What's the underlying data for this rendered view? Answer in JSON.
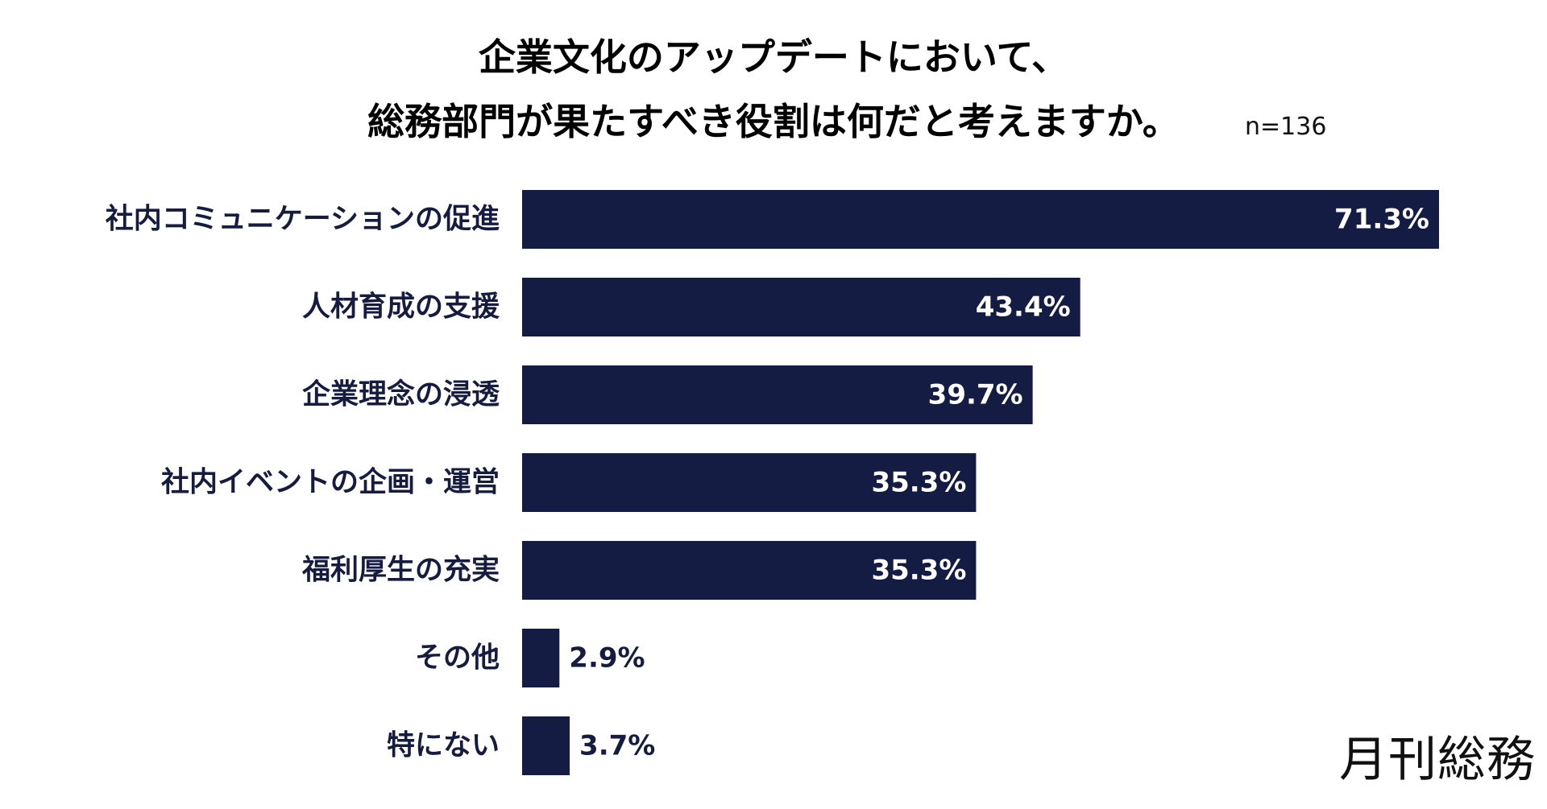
{
  "title": {
    "line1": "企業文化のアップデートにおいて、",
    "line2": "総務部門が果たすべき役割は何だと考えますか。",
    "sample_size": "n=136"
  },
  "brand": "月刊総務",
  "colors": {
    "bar": "#141c43",
    "label": "#151c3f",
    "value_inside": "#ffffff",
    "value_outside": "#151c3f"
  },
  "chart_data": {
    "type": "bar",
    "orientation": "horizontal",
    "title": "企業文化のアップデートにおいて、総務部門が果たすべき役割は何だと考えますか。",
    "categories": [
      "社内コミュニケーションの促進",
      "人材育成の支援",
      "企業理念の浸透",
      "社内イベントの企画・運営",
      "福利厚生の充実",
      "その他",
      "特にない"
    ],
    "values": [
      71.3,
      43.4,
      39.7,
      35.3,
      35.3,
      2.9,
      3.7
    ],
    "value_labels": [
      "71.3%",
      "43.4%",
      "39.7%",
      "35.3%",
      "35.3%",
      "2.9%",
      "3.7%"
    ],
    "unit": "%",
    "xlim": [
      0,
      71.3
    ],
    "xlabel": "",
    "ylabel": "",
    "grid": false,
    "legend": "none"
  }
}
